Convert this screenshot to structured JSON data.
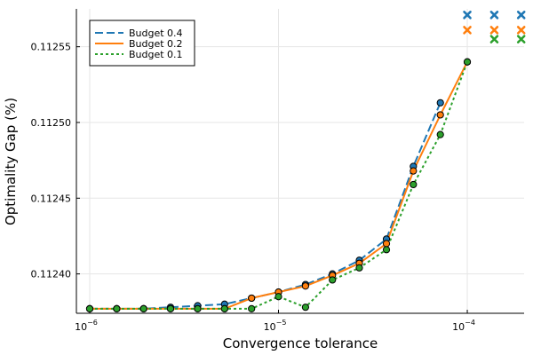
{
  "chart_data": {
    "type": "line",
    "xscale": "log10",
    "xlabel": "Convergence tolerance",
    "ylabel": "Optimality Gap (%)",
    "xlim": [
      8.5e-07,
      0.0002
    ],
    "ylim": [
      0.112374,
      0.112575
    ],
    "xticks": [
      {
        "value": 1e-06,
        "base": "10",
        "exp": "−6"
      },
      {
        "value": 1e-05,
        "base": "10",
        "exp": "−5"
      },
      {
        "value": 0.0001,
        "base": "10",
        "exp": "−4"
      }
    ],
    "yticks": [
      {
        "value": 0.1124,
        "label": "0.11240"
      },
      {
        "value": 0.11245,
        "label": "0.11245"
      },
      {
        "value": 0.1125,
        "label": "0.11250"
      },
      {
        "value": 0.11255,
        "label": "0.11255"
      }
    ],
    "grid": true,
    "legend_position": "top-left",
    "x": [
      1e-06,
      1.39e-06,
      1.93e-06,
      2.68e-06,
      3.73e-06,
      5.18e-06,
      7.2e-06,
      1e-05,
      1.39e-05,
      1.93e-05,
      2.68e-05,
      3.73e-05,
      5.18e-05,
      7.2e-05,
      0.0001
    ],
    "unconverged_x": [
      0.0001,
      0.000139,
      0.000193
    ],
    "series": [
      {
        "name": "Budget 0.4",
        "color": "#1f77b4",
        "dash": "dashed",
        "values": [
          0.112377,
          0.112377,
          0.112377,
          0.112378,
          0.112379,
          0.11238,
          0.112384,
          0.112388,
          0.112393,
          0.1124,
          0.112409,
          0.112423,
          0.112471,
          0.112513,
          null
        ],
        "unconverged": [
          0.112571,
          0.112571,
          0.112571
        ]
      },
      {
        "name": "Budget 0.2",
        "color": "#ff7f0e",
        "dash": "solid",
        "values": [
          0.112377,
          0.112377,
          0.112377,
          0.112377,
          0.112377,
          0.112377,
          0.112384,
          0.112388,
          0.112392,
          0.112399,
          0.112407,
          0.11242,
          0.112468,
          0.112505,
          0.11254
        ],
        "unconverged": [
          0.112561,
          0.112561,
          0.112561
        ]
      },
      {
        "name": "Budget 0.1",
        "color": "#2ca02c",
        "dash": "dotted",
        "values": [
          0.112377,
          0.112377,
          0.112377,
          0.112377,
          0.112377,
          0.112377,
          0.112377,
          0.112385,
          0.112378,
          0.112396,
          0.112404,
          0.112416,
          0.112459,
          0.112492,
          0.11254
        ],
        "unconverged": [
          null,
          0.112555,
          0.112555
        ]
      }
    ]
  }
}
